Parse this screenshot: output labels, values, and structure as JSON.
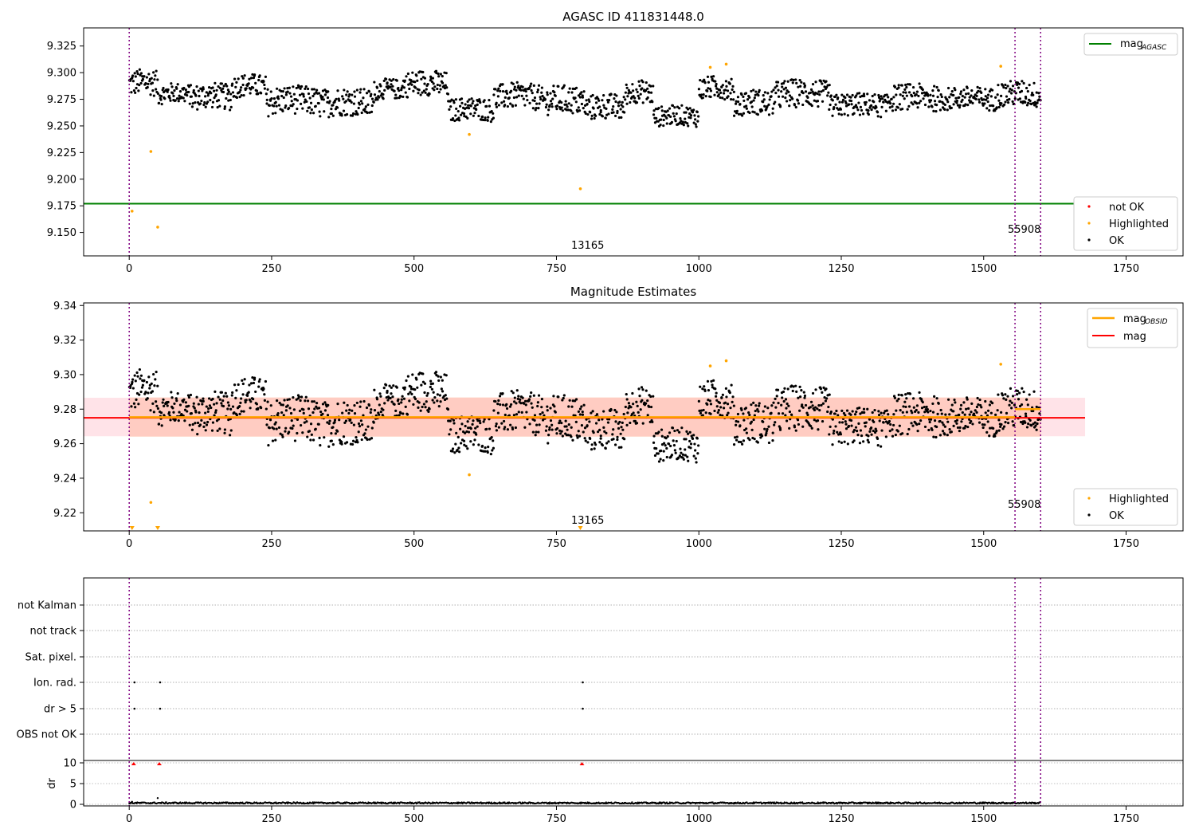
{
  "chart_data": [
    {
      "type": "scatter",
      "title": "AGASC ID 411831448.0",
      "xlim": [
        -80,
        1850
      ],
      "ylim": [
        9.128,
        9.342
      ],
      "x_ticks": [
        0,
        250,
        500,
        750,
        1000,
        1250,
        1500,
        1750
      ],
      "y_ticks": [
        9.15,
        9.175,
        9.2,
        9.225,
        9.25,
        9.275,
        9.3,
        9.325
      ],
      "y_tick_labels": [
        "9.150",
        "9.175",
        "9.200",
        "9.225",
        "9.250",
        "9.275",
        "9.300",
        "9.325"
      ],
      "vlines": [
        0,
        1555,
        1600
      ],
      "hline": {
        "y": 9.177,
        "x0": -80,
        "x1": 1678,
        "color": "#008000"
      },
      "annotations": [
        {
          "text": "13165",
          "x": 777,
          "y": 9.1335
        },
        {
          "text": "55908",
          "x": 1555,
          "y": 9.1475
        }
      ],
      "legend_lines": [
        {
          "label": "mag",
          "sub": "AGASC",
          "color": "#008000"
        }
      ],
      "legend_points": [
        {
          "label": "not OK",
          "color": "#ff0000"
        },
        {
          "label": "Highlighted",
          "color": "#ffa500"
        },
        {
          "label": "OK",
          "color": "#000000"
        }
      ],
      "series": [
        {
          "name": "Highlighted",
          "color": "#ffa500",
          "points": [
            [
              5,
              9.17
            ],
            [
              38,
              9.226
            ],
            [
              50,
              9.155
            ],
            [
              597,
              9.242
            ],
            [
              792,
              9.191
            ],
            [
              1020,
              9.305
            ],
            [
              1048,
              9.308
            ],
            [
              1530,
              9.306
            ]
          ]
        },
        {
          "name": "OK",
          "color": "#000000",
          "segments": [
            {
              "x0": 0,
              "x1": 50,
              "base": 9.289,
              "amp": 0.009
            },
            {
              "x0": 50,
              "x1": 110,
              "base": 9.279,
              "amp": 0.007
            },
            {
              "x0": 110,
              "x1": 180,
              "base": 9.276,
              "amp": 0.009
            },
            {
              "x0": 180,
              "x1": 240,
              "base": 9.286,
              "amp": 0.008
            },
            {
              "x0": 240,
              "x1": 330,
              "base": 9.272,
              "amp": 0.01
            },
            {
              "x0": 330,
              "x1": 430,
              "base": 9.27,
              "amp": 0.01
            },
            {
              "x0": 430,
              "x1": 480,
              "base": 9.283,
              "amp": 0.007
            },
            {
              "x0": 480,
              "x1": 560,
              "base": 9.288,
              "amp": 0.009
            },
            {
              "x0": 560,
              "x1": 640,
              "base": 9.264,
              "amp": 0.008
            },
            {
              "x0": 640,
              "x1": 720,
              "base": 9.276,
              "amp": 0.009
            },
            {
              "x0": 720,
              "x1": 800,
              "base": 9.272,
              "amp": 0.01
            },
            {
              "x0": 800,
              "x1": 870,
              "base": 9.266,
              "amp": 0.009
            },
            {
              "x0": 870,
              "x1": 920,
              "base": 9.28,
              "amp": 0.008
            },
            {
              "x0": 920,
              "x1": 1000,
              "base": 9.258,
              "amp": 0.007
            },
            {
              "x0": 1000,
              "x1": 1060,
              "base": 9.284,
              "amp": 0.008
            },
            {
              "x0": 1060,
              "x1": 1130,
              "base": 9.27,
              "amp": 0.009
            },
            {
              "x0": 1130,
              "x1": 1230,
              "base": 9.278,
              "amp": 0.01
            },
            {
              "x0": 1230,
              "x1": 1330,
              "base": 9.268,
              "amp": 0.008
            },
            {
              "x0": 1330,
              "x1": 1420,
              "base": 9.275,
              "amp": 0.009
            },
            {
              "x0": 1420,
              "x1": 1520,
              "base": 9.274,
              "amp": 0.008
            },
            {
              "x0": 1520,
              "x1": 1600,
              "base": 9.278,
              "amp": 0.009
            }
          ]
        }
      ]
    },
    {
      "type": "scatter",
      "title": "Magnitude Estimates",
      "xlim": [
        -80,
        1850
      ],
      "ylim": [
        9.2095,
        9.3415
      ],
      "x_ticks": [
        0,
        250,
        500,
        750,
        1000,
        1250,
        1500,
        1750
      ],
      "y_ticks": [
        9.22,
        9.24,
        9.26,
        9.28,
        9.3,
        9.32,
        9.34
      ],
      "y_tick_labels": [
        "9.22",
        "9.24",
        "9.26",
        "9.28",
        "9.30",
        "9.32",
        "9.34"
      ],
      "vlines": [
        0,
        1555,
        1600
      ],
      "mag": {
        "y": 9.275,
        "x0": -80,
        "x1": 1678,
        "color": "#ff0000",
        "band": [
          9.2643,
          9.2866
        ],
        "band_color": "#ffc0cb"
      },
      "mag_obsid": [
        {
          "x0": 0,
          "x1": 1555,
          "y": 9.2753
        },
        {
          "x0": 1555,
          "x1": 1600,
          "y": 9.28
        }
      ],
      "mag_obsid_band": [
        9.264,
        9.2868
      ],
      "annotations": [
        {
          "text": "13165",
          "x": 777,
          "y": 9.2135
        },
        {
          "text": "55908",
          "x": 1555,
          "y": 9.2235
        }
      ],
      "legend_lines": [
        {
          "label": "mag",
          "sub": "OBSID",
          "color": "#ffa500"
        },
        {
          "label": "mag",
          "sub": "",
          "color": "#ff0000"
        }
      ],
      "legend_points": [
        {
          "label": "Highlighted",
          "color": "#ffa500"
        },
        {
          "label": "OK",
          "color": "#000000"
        }
      ],
      "triangles": [
        5,
        50,
        792
      ],
      "series": [
        {
          "name": "Highlighted",
          "color": "#ffa500",
          "points": [
            [
              38,
              9.226
            ],
            [
              597,
              9.242
            ],
            [
              1020,
              9.305
            ],
            [
              1048,
              9.308
            ],
            [
              1530,
              9.306
            ]
          ]
        },
        {
          "name": "OK",
          "color": "#000000",
          "ref": "same as top panel"
        }
      ]
    },
    {
      "type": "scatter",
      "xlim": [
        -80,
        1850
      ],
      "x_ticks": [
        0,
        250,
        500,
        750,
        1000,
        1250,
        1500,
        1750
      ],
      "vlines": [
        0,
        1555,
        1600
      ],
      "flag_rows": [
        "not Kalman",
        "not track",
        "Sat. pixel.",
        "Ion. rad.",
        "dr > 5",
        "OBS not OK"
      ],
      "flag_points": {
        "Ion. rad.": [
          5,
          50,
          792
        ],
        "dr > 5": [
          5,
          50,
          792
        ]
      },
      "dr_ylabel": "dr",
      "dr_ylim": [
        -0.5,
        10.5
      ],
      "dr_ticks": [
        0,
        5,
        10
      ],
      "dr_red_points": [
        [
          5,
          9.8
        ],
        [
          50,
          9.8
        ],
        [
          792,
          9.8
        ]
      ],
      "dr_spikes": [
        [
          50,
          1.5
        ],
        [
          5,
          0.6
        ]
      ]
    }
  ]
}
